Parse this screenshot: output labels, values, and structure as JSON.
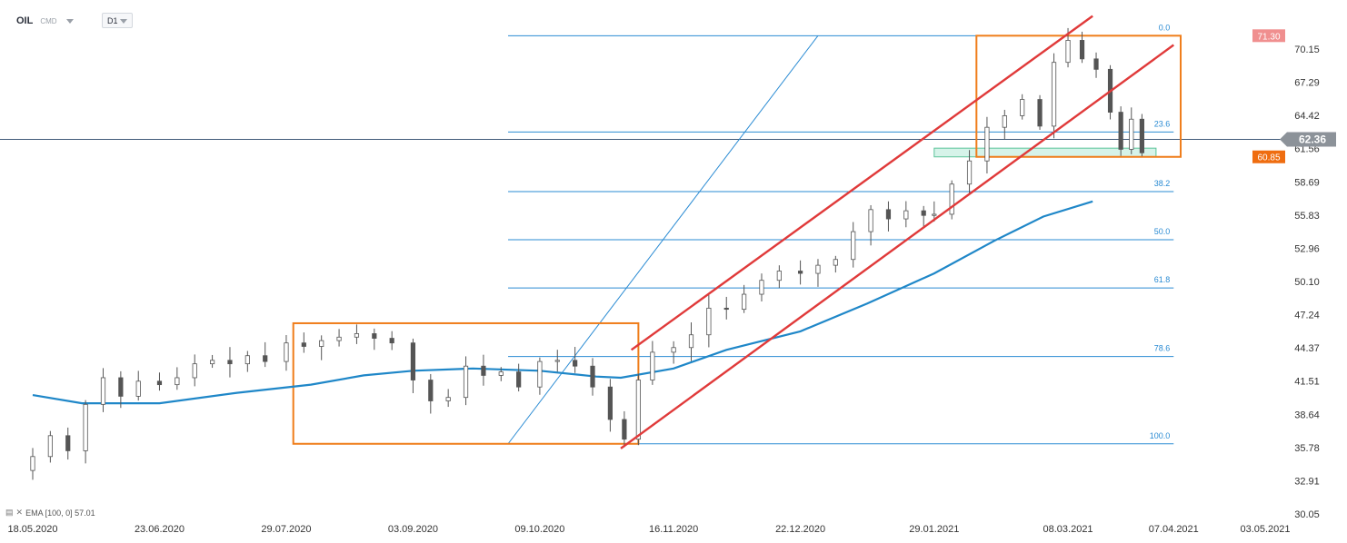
{
  "toolbar": {
    "symbol": "OIL",
    "instrument_type": "CMD",
    "timeframe": "D1"
  },
  "legend": {
    "text": "EMA [100, 0]  57.01",
    "ema_period": 100,
    "ema_value": 57.01
  },
  "colors": {
    "price_axis_bg": "#ffffff",
    "candle_up": "#ffffff",
    "candle_down": "#555555",
    "candle_wick": "#555555",
    "ema": "#1f87c8",
    "fib": "#2a8bd3",
    "channel": "#e03a3a",
    "box": "#ef7d1a",
    "zone": "#b5ead7",
    "current_price_bg": "#8c9299",
    "label_71": "#f08f8f",
    "label_60": "#ef6d10"
  },
  "chart_data": {
    "type": "candlestick",
    "symbol": "OIL",
    "interval": "D1",
    "y_axis": {
      "ticks": [
        70.15,
        67.29,
        64.42,
        61.56,
        58.69,
        55.83,
        52.96,
        50.1,
        47.24,
        44.37,
        41.51,
        38.64,
        35.78,
        32.91,
        30.05
      ],
      "range": [
        30.05,
        73.0
      ],
      "position": "right"
    },
    "x_axis": {
      "ticks": [
        "18.05.2020",
        "23.06.2020",
        "29.07.2020",
        "03.09.2020",
        "09.10.2020",
        "16.11.2020",
        "22.12.2020",
        "29.01.2021",
        "08.03.2021",
        "07.04.2021",
        "03.05.2021"
      ],
      "start": "2020-05-18",
      "end": "2021-05-03"
    },
    "current_price": 62.36,
    "price_labels": [
      71.3,
      60.85
    ],
    "fibonacci": {
      "high": 71.3,
      "low": 36.1,
      "levels": [
        {
          "label": "0.0",
          "ratio": 0
        },
        {
          "label": "23.6",
          "ratio": 0.236
        },
        {
          "label": "38.2",
          "ratio": 0.382
        },
        {
          "label": "50.0",
          "ratio": 0.5
        },
        {
          "label": "61.8",
          "ratio": 0.618
        },
        {
          "label": "78.6",
          "ratio": 0.786
        },
        {
          "label": "100.0",
          "ratio": 1
        }
      ]
    },
    "ema_100": [
      [
        "2020-05-18",
        40.3
      ],
      [
        "2020-06-01",
        39.6
      ],
      [
        "2020-06-23",
        39.6
      ],
      [
        "2020-07-15",
        40.5
      ],
      [
        "2020-08-05",
        41.2
      ],
      [
        "2020-08-20",
        42.0
      ],
      [
        "2020-09-03",
        42.4
      ],
      [
        "2020-09-20",
        42.6
      ],
      [
        "2020-10-09",
        42.4
      ],
      [
        "2020-10-25",
        41.9
      ],
      [
        "2020-11-01",
        41.8
      ],
      [
        "2020-11-16",
        42.6
      ],
      [
        "2020-12-01",
        44.2
      ],
      [
        "2020-12-22",
        45.8
      ],
      [
        "2021-01-10",
        48.2
      ],
      [
        "2021-01-29",
        50.8
      ],
      [
        "2021-02-15",
        53.6
      ],
      [
        "2021-03-01",
        55.7
      ],
      [
        "2021-03-15",
        57.01
      ]
    ],
    "candles_close": [
      [
        "2020-05-18",
        35.0
      ],
      [
        "2020-05-23",
        36.8
      ],
      [
        "2020-05-28",
        35.5
      ],
      [
        "2020-06-02",
        39.5
      ],
      [
        "2020-06-07",
        41.8
      ],
      [
        "2020-06-12",
        40.2
      ],
      [
        "2020-06-17",
        41.5
      ],
      [
        "2020-06-23",
        41.2
      ],
      [
        "2020-06-28",
        41.8
      ],
      [
        "2020-07-03",
        43.0
      ],
      [
        "2020-07-08",
        43.3
      ],
      [
        "2020-07-13",
        43.0
      ],
      [
        "2020-07-18",
        43.7
      ],
      [
        "2020-07-23",
        43.2
      ],
      [
        "2020-07-29",
        44.8
      ],
      [
        "2020-08-03",
        44.5
      ],
      [
        "2020-08-08",
        45.0
      ],
      [
        "2020-08-13",
        45.3
      ],
      [
        "2020-08-18",
        45.6
      ],
      [
        "2020-08-23",
        45.2
      ],
      [
        "2020-08-28",
        44.8
      ],
      [
        "2020-09-03",
        41.6
      ],
      [
        "2020-09-08",
        39.8
      ],
      [
        "2020-09-13",
        40.1
      ],
      [
        "2020-09-18",
        42.8
      ],
      [
        "2020-09-23",
        42.0
      ],
      [
        "2020-09-28",
        42.3
      ],
      [
        "2020-10-03",
        41.0
      ],
      [
        "2020-10-09",
        43.2
      ],
      [
        "2020-10-14",
        43.3
      ],
      [
        "2020-10-19",
        42.8
      ],
      [
        "2020-10-24",
        41.0
      ],
      [
        "2020-10-29",
        38.2
      ],
      [
        "2020-11-02",
        36.5
      ],
      [
        "2020-11-06",
        41.6
      ],
      [
        "2020-11-10",
        44.0
      ],
      [
        "2020-11-16",
        44.4
      ],
      [
        "2020-11-21",
        45.5
      ],
      [
        "2020-11-26",
        47.8
      ],
      [
        "2020-12-01",
        47.7
      ],
      [
        "2020-12-06",
        49.0
      ],
      [
        "2020-12-11",
        50.2
      ],
      [
        "2020-12-16",
        51.0
      ],
      [
        "2020-12-22",
        50.8
      ],
      [
        "2020-12-27",
        51.5
      ],
      [
        "2021-01-01",
        52.0
      ],
      [
        "2021-01-06",
        54.4
      ],
      [
        "2021-01-11",
        56.3
      ],
      [
        "2021-01-16",
        55.5
      ],
      [
        "2021-01-21",
        56.2
      ],
      [
        "2021-01-26",
        55.8
      ],
      [
        "2021-01-29",
        55.9
      ],
      [
        "2021-02-03",
        58.5
      ],
      [
        "2021-02-08",
        60.5
      ],
      [
        "2021-02-13",
        63.4
      ],
      [
        "2021-02-18",
        64.4
      ],
      [
        "2021-02-23",
        65.8
      ],
      [
        "2021-02-28",
        63.5
      ],
      [
        "2021-03-04",
        69.0
      ],
      [
        "2021-03-08",
        70.9
      ],
      [
        "2021-03-12",
        69.3
      ],
      [
        "2021-03-16",
        68.4
      ],
      [
        "2021-03-20",
        64.7
      ],
      [
        "2021-03-23",
        61.5
      ],
      [
        "2021-03-26",
        64.1
      ],
      [
        "2021-03-29",
        61.2
      ]
    ]
  }
}
